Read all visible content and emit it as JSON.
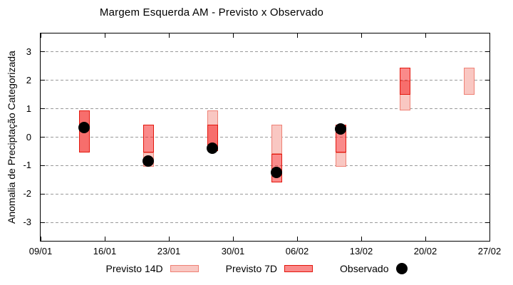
{
  "chart_data": {
    "type": "bar",
    "subtype": "forecast-range-bars-with-observed-points",
    "title": "Margem Esquerda AM - Previsto x Observado",
    "xlabel": "",
    "ylabel": "Anomalia de Preciptação Categorizada",
    "ylim": [
      -3.65,
      3.65
    ],
    "yticks": [
      -3,
      -2,
      -1,
      0,
      1,
      2,
      3
    ],
    "xtick_labels": [
      "09/01",
      "16/01",
      "23/01",
      "30/01",
      "06/02",
      "13/02",
      "20/02",
      "27/02"
    ],
    "x_span_days": 49,
    "xtick_interval_days": 7,
    "grid": "horizontal dashed gray lines at every y tick, no vertical grid",
    "legend_position": "below plot, centered",
    "categories": [
      "14/01",
      "21/01",
      "28/01",
      "04/02",
      "11/02",
      "18/02",
      "25/02"
    ],
    "category_day_offsets": [
      4.75,
      11.75,
      18.75,
      25.75,
      32.75,
      39.75,
      46.75
    ],
    "series": [
      {
        "name": "Previsto 14D",
        "type": "range-bar",
        "ranges": [
          [
            -0.55,
            0.95
          ],
          [
            -1.05,
            -0.55
          ],
          [
            -0.5,
            0.95
          ],
          [
            -0.6,
            0.45
          ],
          [
            -1.05,
            -0.55
          ],
          [
            0.95,
            2.0
          ],
          [
            1.5,
            2.45
          ]
        ]
      },
      {
        "name": "Previsto 7D",
        "type": "range-bar",
        "ranges": [
          [
            -0.55,
            0.95
          ],
          [
            -0.55,
            0.45
          ],
          [
            -0.5,
            0.45
          ],
          [
            -1.6,
            -0.6
          ],
          [
            -0.55,
            0.45
          ],
          [
            1.5,
            2.45
          ],
          null
        ]
      },
      {
        "name": "Observado",
        "type": "scatter",
        "values": [
          0.35,
          -0.85,
          -0.4,
          -1.25,
          0.3,
          null,
          null
        ]
      }
    ],
    "legend": [
      {
        "label": "Previsto 14D",
        "swatch": "box-14d"
      },
      {
        "label": "Previsto 7D",
        "swatch": "box-7d"
      },
      {
        "label": "Observado",
        "swatch": "dot"
      }
    ],
    "colors": {
      "p14_fill": "#f9c7c2",
      "p14_border": "#ef8175",
      "p7_fill": "rgba(245,21,21,0.5)",
      "p7_border": "#e3170d",
      "observed": "#000000",
      "grid": "#9a9a9a",
      "axis": "#000000",
      "background": "#ffffff"
    }
  }
}
